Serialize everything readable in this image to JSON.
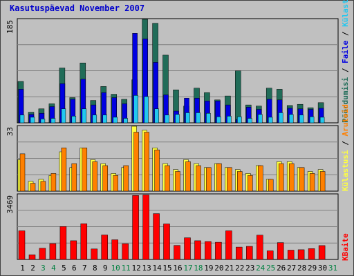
{
  "chart_data": {
    "type": "bar",
    "title": "Kasutuspäevad November 2007",
    "colors": {
      "background": "#c0c0c0",
      "grid": "#808080",
      "title": "#0000cc",
      "weekday": "#000000",
      "weekend": "#008040",
      "pages": "#206c58",
      "files": "#0000e0",
      "hits": "#22c8f0",
      "visits": "#ff8000",
      "sites": "#ffff40",
      "kbytes": "#ff0000"
    },
    "days": [
      "1",
      "2",
      "3",
      "4",
      "5",
      "6",
      "7",
      "8",
      "9",
      "10",
      "11",
      "12",
      "13",
      "14",
      "15",
      "16",
      "17",
      "18",
      "19",
      "20",
      "21",
      "22",
      "23",
      "24",
      "25",
      "26",
      "27",
      "28",
      "29",
      "30",
      "31"
    ],
    "weekend_days": [
      "3",
      "4",
      "10",
      "11",
      "17",
      "18",
      "24",
      "25",
      "31"
    ],
    "panels": [
      {
        "id": "traffic",
        "ymax_label": "185",
        "ylim": [
          0,
          185
        ],
        "legend": [
          "Pöördumisi",
          "Faile",
          "Külastatud lehekülgi"
        ],
        "series": [
          {
            "name": "Pöördumisi",
            "color": "#206c58",
            "values": [
              74,
              19,
              25,
              34,
              98,
              45,
              107,
              40,
              65,
              51,
              42,
              77,
              185,
              178,
              121,
              59,
              30,
              62,
              54,
              41,
              48,
              93,
              32,
              30,
              62,
              60,
              31,
              33,
              27,
              36,
              0
            ]
          },
          {
            "name": "Faile",
            "color": "#0000e0",
            "values": [
              60,
              15,
              17,
              29,
              70,
              42,
              78,
              32,
              54,
              45,
              34,
              160,
              150,
              108,
              50,
              21,
              44,
              44,
              39,
              39,
              32,
              6,
              28,
              24,
              42,
              41,
              26,
              25,
              24,
              26,
              0
            ]
          },
          {
            "name": "Külastatud lehekülgi",
            "color": "#22c8f0",
            "values": [
              14,
              10,
              7,
              8,
              25,
              12,
              25,
              14,
              14,
              10,
              8,
              49,
              47,
              25,
              14,
              15,
              18,
              18,
              17,
              11,
              12,
              11,
              8,
              15,
              10,
              18,
              15,
              14,
              11,
              10,
              0
            ]
          }
        ]
      },
      {
        "id": "visits",
        "ymax_label": "33",
        "ylim": [
          0,
          33
        ],
        "legend": [
          "Külastusi",
          "Aruteid"
        ],
        "series": [
          {
            "name": "Külastusi",
            "color": "#ffff40",
            "values": [
              16,
              5,
              6,
              8,
              20,
              12,
              22,
              16,
              14,
              9,
              12,
              33,
              31,
              22,
              14,
              11,
              16,
              14,
              12,
              14,
              12,
              11,
              9,
              13,
              6,
              15,
              15,
              12,
              10,
              11,
              0
            ]
          },
          {
            "name": "Aruteid",
            "color": "#ff8000",
            "values": [
              19,
              4,
              5,
              9,
              22,
              14,
              22,
              15,
              13,
              8,
              13,
              30,
              30,
              21,
              13,
              10,
              15,
              13,
              12,
              14,
              12,
              10,
              8,
              13,
              6,
              14,
              14,
              12,
              9,
              10,
              0
            ]
          }
        ]
      },
      {
        "id": "kbytes",
        "ymax_label": "3469",
        "ylim": [
          0,
          3469
        ],
        "legend": [
          "KBaite"
        ],
        "series": [
          {
            "name": "KBaite",
            "color": "#ff0000",
            "values": [
              1530,
              250,
              600,
              850,
              1760,
              1000,
              1910,
              560,
              1310,
              1050,
              840,
              3420,
              3450,
              2450,
              1900,
              750,
              1160,
              1000,
              960,
              920,
              1530,
              660,
              700,
              1300,
              460,
              900,
              500,
              520,
              580,
              740,
              0
            ]
          }
        ]
      }
    ]
  }
}
